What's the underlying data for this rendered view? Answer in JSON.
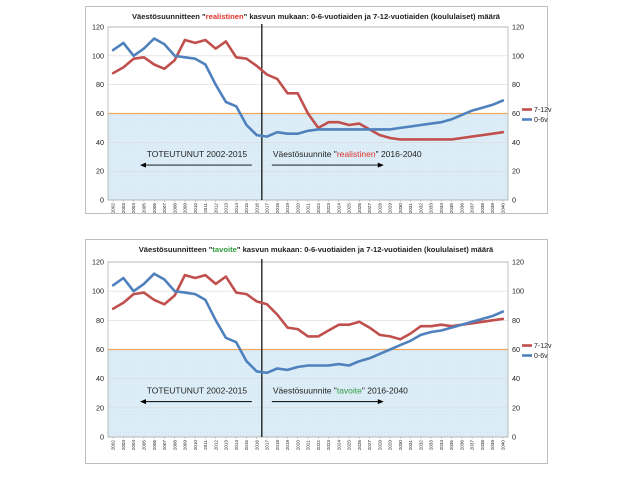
{
  "chart_data": [
    {
      "type": "line",
      "title_parts": [
        {
          "text": "Väestösuunnitteen \"",
          "color": "#222222"
        },
        {
          "text": "realistinen",
          "color": "#e0312a"
        },
        {
          "text": "\" kasvun mukaan: 0-6-vuotiaiden ja 7-12-vuotiaiden (koululaiset) määrä",
          "color": "#222222"
        }
      ],
      "x": [
        "2002",
        "2003",
        "2004",
        "2005",
        "2006",
        "2007",
        "2008",
        "2009",
        "2010",
        "2011",
        "2012",
        "2013",
        "2014",
        "2015",
        "2016",
        "2017",
        "2018",
        "2019",
        "2020",
        "2021",
        "2022",
        "2023",
        "2024",
        "2025",
        "2026",
        "2027",
        "2028",
        "2029",
        "2030",
        "2031",
        "2032",
        "2033",
        "2034",
        "2035",
        "2036",
        "2037",
        "2038",
        "2039",
        "2040"
      ],
      "ylim": [
        0,
        120
      ],
      "yticks": [
        "0",
        "20",
        "40",
        "60",
        "80",
        "100",
        "120"
      ],
      "reference_line": {
        "value": 60,
        "color": "#f0a860"
      },
      "divider_year": "2016",
      "series": [
        {
          "name": "7-12v",
          "color": "#c0504d",
          "values": [
            88,
            92,
            98,
            99,
            94,
            91,
            97,
            111,
            109,
            111,
            105,
            110,
            99,
            98,
            93,
            87,
            84,
            74,
            74,
            60,
            50,
            54,
            54,
            52,
            53,
            49,
            45,
            43,
            42,
            42,
            42,
            42,
            42,
            42,
            43,
            44,
            45,
            46,
            47
          ]
        },
        {
          "name": "0-6v",
          "color": "#4f81bd",
          "values": [
            104,
            109,
            100,
            105,
            112,
            108,
            100,
            99,
            98,
            94,
            80,
            68,
            65,
            52,
            45,
            44,
            47,
            46,
            46,
            48,
            49,
            49,
            49,
            49,
            49,
            49,
            49,
            49,
            50,
            51,
            52,
            53,
            54,
            56,
            59,
            62,
            64,
            66,
            69
          ]
        }
      ],
      "annotations": {
        "left_label": "TOTEUTUNUT 2002-2015",
        "right_label_parts": [
          {
            "text": "Väestösuunnite \"",
            "color": "#222222"
          },
          {
            "text": "realistinen",
            "color": "#e0312a"
          },
          {
            "text": "\" 2016-2040",
            "color": "#222222"
          }
        ]
      },
      "legend_placement": "right"
    },
    {
      "type": "line",
      "title_parts": [
        {
          "text": "Väestösuunnitteen \"",
          "color": "#222222"
        },
        {
          "text": "tavoite",
          "color": "#2e9e3c"
        },
        {
          "text": "\" kasvun mukaan: 0-6-vuotiaiden ja 7-12-vuotiaiden (koululaiset) määrä",
          "color": "#222222"
        }
      ],
      "x": [
        "2002",
        "2003",
        "2004",
        "2005",
        "2006",
        "2007",
        "2008",
        "2009",
        "2010",
        "2011",
        "2012",
        "2013",
        "2014",
        "2015",
        "2016",
        "2017",
        "2018",
        "2019",
        "2020",
        "2021",
        "2022",
        "2023",
        "2024",
        "2025",
        "2026",
        "2027",
        "2028",
        "2029",
        "2030",
        "2031",
        "2032",
        "2033",
        "2034",
        "2035",
        "2036",
        "2037",
        "2038",
        "2039",
        "2040"
      ],
      "ylim": [
        0,
        120
      ],
      "yticks": [
        "0",
        "20",
        "40",
        "60",
        "80",
        "100",
        "120"
      ],
      "reference_line": {
        "value": 60,
        "color": "#f0a860"
      },
      "divider_year": "2016",
      "series": [
        {
          "name": "7-12v",
          "color": "#c0504d",
          "values": [
            88,
            92,
            98,
            99,
            94,
            91,
            97,
            111,
            109,
            111,
            105,
            110,
            99,
            98,
            93,
            91,
            84,
            75,
            74,
            69,
            69,
            73,
            77,
            77,
            79,
            75,
            70,
            69,
            67,
            71,
            76,
            76,
            77,
            76,
            77,
            78,
            79,
            80,
            81
          ]
        },
        {
          "name": "0-6v",
          "color": "#4f81bd",
          "values": [
            104,
            109,
            100,
            105,
            112,
            108,
            100,
            99,
            98,
            94,
            80,
            68,
            65,
            52,
            45,
            44,
            47,
            46,
            48,
            49,
            49,
            49,
            50,
            49,
            52,
            54,
            57,
            60,
            63,
            66,
            70,
            72,
            73,
            75,
            77,
            79,
            81,
            83,
            86
          ]
        }
      ],
      "annotations": {
        "left_label": "TOTEUTUNUT 2002-2015",
        "right_label_parts": [
          {
            "text": "Väestösuunnite \"",
            "color": "#222222"
          },
          {
            "text": "tavoite",
            "color": "#2e9e3c"
          },
          {
            "text": "\" 2016-2040",
            "color": "#222222"
          }
        ]
      },
      "legend_placement": "right"
    }
  ]
}
